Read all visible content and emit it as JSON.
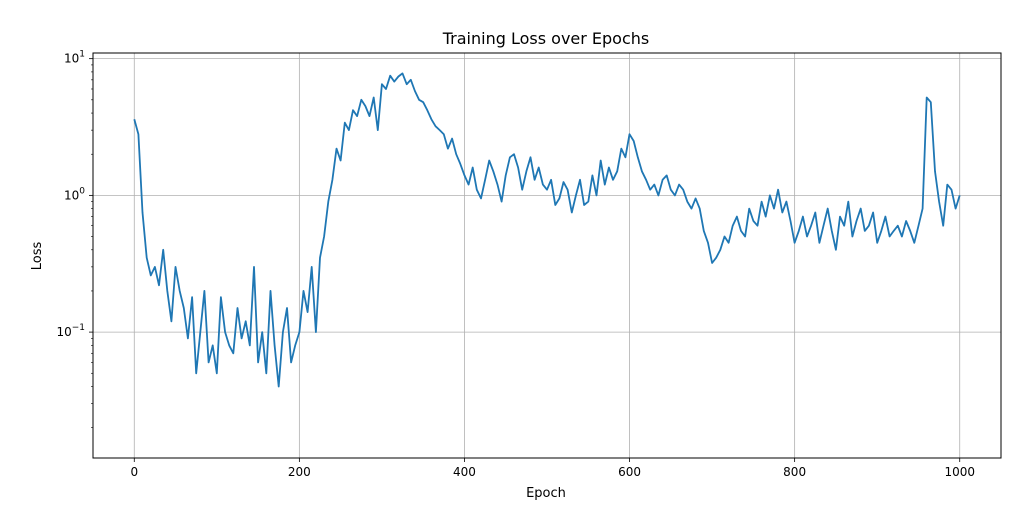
{
  "chart_data": {
    "type": "line",
    "title": "Training Loss over Epochs",
    "xlabel": "Epoch",
    "ylabel": "Loss",
    "xlim": [
      -50,
      1050
    ],
    "ylim": [
      0.012,
      11
    ],
    "yscale": "log",
    "grid": true,
    "x_ticks": [
      0,
      200,
      400,
      600,
      800,
      1000
    ],
    "x_tick_labels": [
      "0",
      "200",
      "400",
      "600",
      "800",
      "1000"
    ],
    "y_ticks": [
      0.1,
      1,
      10
    ],
    "y_tick_labels": [
      {
        "base": "10",
        "exp": "−1"
      },
      {
        "base": "10",
        "exp": "0"
      },
      {
        "base": "10",
        "exp": "1"
      }
    ],
    "series": [
      {
        "color": "#1f77b4",
        "x": [
          0,
          5,
          10,
          15,
          20,
          25,
          30,
          35,
          40,
          45,
          50,
          55,
          60,
          65,
          70,
          75,
          80,
          85,
          90,
          95,
          100,
          105,
          110,
          115,
          120,
          125,
          130,
          135,
          140,
          145,
          150,
          155,
          160,
          165,
          170,
          175,
          180,
          185,
          190,
          195,
          200,
          205,
          210,
          215,
          220,
          225,
          230,
          235,
          240,
          245,
          250,
          255,
          260,
          265,
          270,
          275,
          280,
          285,
          290,
          295,
          300,
          305,
          310,
          315,
          320,
          325,
          330,
          335,
          340,
          345,
          350,
          355,
          360,
          365,
          370,
          375,
          380,
          385,
          390,
          395,
          400,
          405,
          410,
          415,
          420,
          425,
          430,
          435,
          440,
          445,
          450,
          455,
          460,
          465,
          470,
          475,
          480,
          485,
          490,
          495,
          500,
          505,
          510,
          515,
          520,
          525,
          530,
          535,
          540,
          545,
          550,
          555,
          560,
          565,
          570,
          575,
          580,
          585,
          590,
          595,
          600,
          605,
          610,
          615,
          620,
          625,
          630,
          635,
          640,
          645,
          650,
          655,
          660,
          665,
          670,
          675,
          680,
          685,
          690,
          695,
          700,
          705,
          710,
          715,
          720,
          725,
          730,
          735,
          740,
          745,
          750,
          755,
          760,
          765,
          770,
          775,
          780,
          785,
          790,
          795,
          800,
          805,
          810,
          815,
          820,
          825,
          830,
          835,
          840,
          845,
          850,
          855,
          860,
          865,
          870,
          875,
          880,
          885,
          890,
          895,
          900,
          905,
          910,
          915,
          920,
          925,
          930,
          935,
          940,
          945,
          950,
          955,
          960,
          965,
          970,
          975,
          980,
          985,
          990,
          995,
          1000
        ],
        "y": [
          3.6,
          2.8,
          0.75,
          0.35,
          0.26,
          0.3,
          0.22,
          0.4,
          0.2,
          0.12,
          0.3,
          0.2,
          0.15,
          0.09,
          0.18,
          0.05,
          0.1,
          0.2,
          0.06,
          0.08,
          0.05,
          0.18,
          0.1,
          0.08,
          0.07,
          0.15,
          0.09,
          0.12,
          0.08,
          0.3,
          0.06,
          0.1,
          0.05,
          0.2,
          0.08,
          0.04,
          0.1,
          0.15,
          0.06,
          0.08,
          0.1,
          0.2,
          0.14,
          0.3,
          0.1,
          0.35,
          0.5,
          0.9,
          1.3,
          2.2,
          1.8,
          3.4,
          3.0,
          4.2,
          3.8,
          5.0,
          4.5,
          3.8,
          5.2,
          3.0,
          6.5,
          6.0,
          7.5,
          6.8,
          7.4,
          7.8,
          6.5,
          7.0,
          5.8,
          5.0,
          4.8,
          4.2,
          3.6,
          3.2,
          3.0,
          2.8,
          2.2,
          2.6,
          2.0,
          1.7,
          1.4,
          1.2,
          1.6,
          1.1,
          0.95,
          1.3,
          1.8,
          1.5,
          1.2,
          0.9,
          1.4,
          1.9,
          2.0,
          1.6,
          1.1,
          1.5,
          1.9,
          1.3,
          1.6,
          1.2,
          1.1,
          1.3,
          0.85,
          0.95,
          1.25,
          1.1,
          0.75,
          1.0,
          1.3,
          0.85,
          0.9,
          1.4,
          1.0,
          1.8,
          1.2,
          1.6,
          1.3,
          1.5,
          2.2,
          1.9,
          2.8,
          2.5,
          1.9,
          1.5,
          1.3,
          1.1,
          1.2,
          1.0,
          1.3,
          1.4,
          1.1,
          1.0,
          1.2,
          1.1,
          0.9,
          0.8,
          0.95,
          0.8,
          0.55,
          0.45,
          0.32,
          0.35,
          0.4,
          0.5,
          0.45,
          0.6,
          0.7,
          0.55,
          0.5,
          0.8,
          0.65,
          0.6,
          0.9,
          0.7,
          1.0,
          0.8,
          1.1,
          0.75,
          0.9,
          0.65,
          0.45,
          0.55,
          0.7,
          0.5,
          0.6,
          0.75,
          0.45,
          0.6,
          0.8,
          0.55,
          0.4,
          0.7,
          0.6,
          0.9,
          0.5,
          0.65,
          0.8,
          0.55,
          0.6,
          0.75,
          0.45,
          0.55,
          0.7,
          0.5,
          0.55,
          0.6,
          0.5,
          0.65,
          0.55,
          0.45,
          0.6,
          0.8,
          5.2,
          4.8,
          1.5,
          0.9,
          0.6,
          1.2,
          1.1,
          0.8,
          1.0
        ]
      }
    ]
  }
}
